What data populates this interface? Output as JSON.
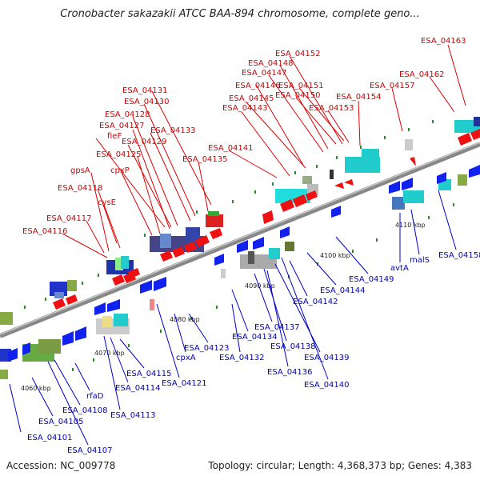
{
  "title": "Cronobacter sakazakii ATCC BAA-894 chromosome, complete geno...",
  "accession": "Accession: NC_009778",
  "summary": "Topology: circular; Length: 4,368,373 bp; Genes: 4,383",
  "colors": {
    "top_strand_label": "#d40000",
    "bottom_strand_label": "#0000c8"
  },
  "kbp_ticks": [
    "4060 kbp",
    "4070 kbp",
    "4080 kbp",
    "4090 kbp",
    "4100 kbp",
    "4110 kbp"
  ],
  "top_labels": [
    "ESA_04163",
    "ESA_04152",
    "ESA_04162",
    "ESA_04148",
    "ESA_04147",
    "ESA_04157",
    "ESA_04146",
    "ESA_04151",
    "ESA_04131",
    "ESA_04145",
    "ESA_04150",
    "ESA_04154",
    "ESA_04130",
    "ESA_04143",
    "ESA_04153",
    "ESA_04128",
    "ESA_04127",
    "ESA_04133",
    "fieF",
    "ESA_04129",
    "ESA_04141",
    "ESA_04125",
    "ESA_04135",
    "cpxP",
    "gpsA",
    "ESA_04118",
    "cysE",
    "ESA_04117",
    "ESA_04116"
  ],
  "bottom_labels": [
    "ESA_04158",
    "malS",
    "avtA",
    "ESA_04149",
    "ESA_04144",
    "ESA_04142",
    "ESA_04137",
    "ESA_04134",
    "ESA_04138",
    "ESA_04123",
    "ESA_04132",
    "ESA_04139",
    "cpxA",
    "ESA_04136",
    "ESA_04115",
    "ESA_04140",
    "ESA_04114",
    "ESA_04121",
    "rfaD",
    "ESA_04108",
    "ESA_04113",
    "ESA_04105",
    "ESA_04101",
    "ESA_04107"
  ]
}
